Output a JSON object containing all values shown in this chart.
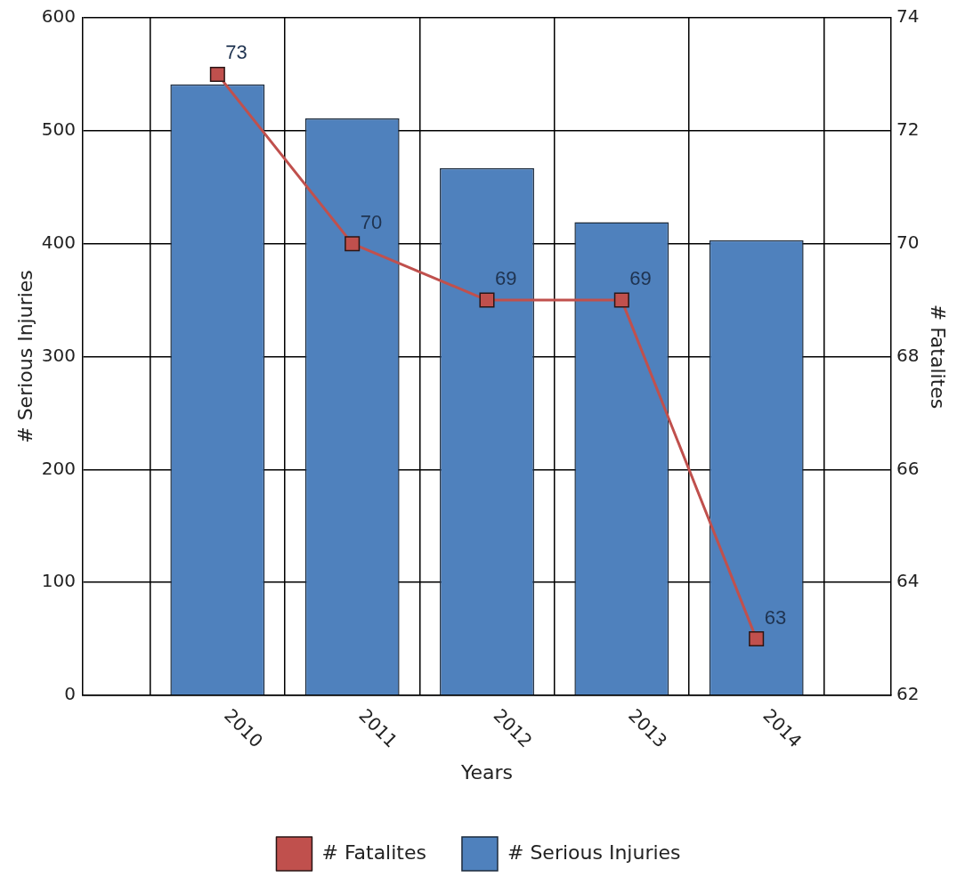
{
  "chart_data": {
    "type": "bar",
    "xlabel": "Years",
    "ylabel": "# Serious Injuries",
    "y2label": "# Fatalites",
    "categories": [
      "2010",
      "2011",
      "2012",
      "2013",
      "2014"
    ],
    "series": [
      {
        "name": "# Fatalites",
        "type": "line",
        "axis": "y2",
        "color": "#c0504d",
        "values": [
          73,
          70,
          69,
          69,
          63
        ],
        "value_labels": [
          "73",
          "70",
          "69",
          "69",
          "63"
        ]
      },
      {
        "name": "# Serious Injuries",
        "color": "#4f81bd",
        "values": [
          541,
          511,
          467,
          419,
          403
        ]
      }
    ],
    "ylim": [
      0,
      600
    ],
    "yticks": [
      0,
      100,
      200,
      300,
      400,
      500,
      600
    ],
    "y2lim": [
      62,
      74
    ],
    "y2ticks": [
      62,
      64,
      66,
      68,
      70,
      72,
      74
    ],
    "grid": true,
    "legend": "bottom",
    "marker": "square",
    "line_style": "solid"
  }
}
